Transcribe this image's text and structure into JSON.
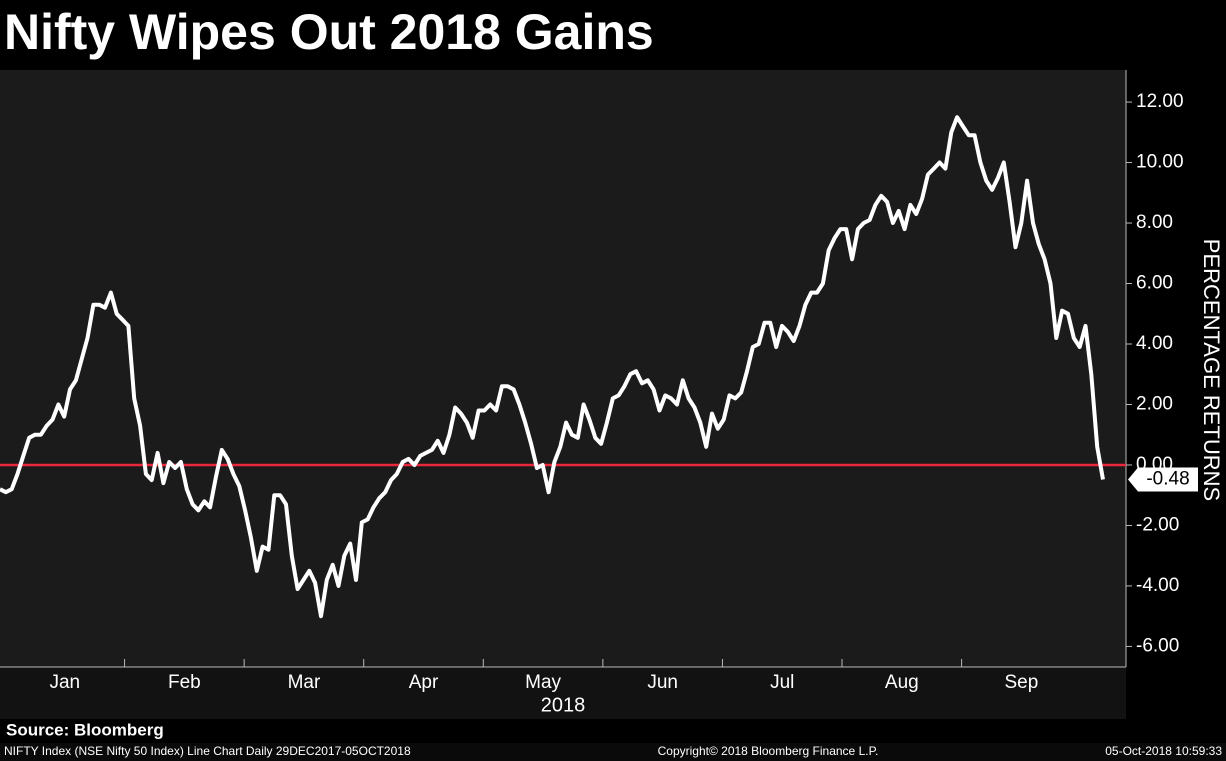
{
  "chart_data": {
    "type": "line",
    "title": "Nifty Wipes Out 2018 Gains",
    "y_label": "PERCENTAGE RETURNS",
    "x_label": "2018",
    "months": [
      "Jan",
      "Feb",
      "Mar",
      "Apr",
      "May",
      "Jun",
      "Jul",
      "Aug",
      "Sep"
    ],
    "source": "Source: Bloomberg",
    "footer_left": "NIFTY Index (NSE Nifty 50 Index) Line Chart  Daily 29DEC2017-05OCT2018",
    "footer_center": "Copyright© 2018 Bloomberg Finance L.P.",
    "footer_right": "05-Oct-2018 10:59:33",
    "ylim": [
      -6.68,
      13.06
    ],
    "yticks": [
      {
        "value": -6,
        "label": "-6.00"
      },
      {
        "value": -4,
        "label": "-4.00"
      },
      {
        "value": -2,
        "label": "-2.00"
      },
      {
        "value": 0,
        "label": "0.00"
      },
      {
        "value": 2,
        "label": "2.00"
      },
      {
        "value": 4,
        "label": "4.00"
      },
      {
        "value": 6,
        "label": "6.00"
      },
      {
        "value": 8,
        "label": "8.00"
      },
      {
        "value": 10,
        "label": "10.00"
      },
      {
        "value": 12,
        "label": "12.00"
      }
    ],
    "zero_line_color": "#e8283c",
    "series": [
      {
        "name": "NIFTY Index",
        "color": "#ffffff",
        "values": [
          -0.8,
          -0.9,
          -0.8,
          -0.3,
          0.3,
          0.9,
          1.0,
          1.0,
          1.3,
          1.5,
          2.0,
          1.6,
          2.5,
          2.8,
          3.5,
          4.2,
          5.3,
          5.3,
          5.2,
          5.7,
          5.0,
          4.8,
          4.6,
          2.2,
          1.3,
          -0.3,
          -0.5,
          0.4,
          -0.6,
          0.1,
          -0.1,
          0.1,
          -0.8,
          -1.3,
          -1.5,
          -1.2,
          -1.4,
          -0.4,
          0.5,
          0.2,
          -0.3,
          -0.7,
          -1.5,
          -2.4,
          -3.5,
          -2.7,
          -2.8,
          -1.0,
          -1.0,
          -1.3,
          -3.0,
          -4.1,
          -3.8,
          -3.5,
          -3.9,
          -5.0,
          -3.8,
          -3.3,
          -4.0,
          -3.0,
          -2.6,
          -3.8,
          -1.9,
          -1.8,
          -1.4,
          -1.1,
          -0.9,
          -0.5,
          -0.3,
          0.1,
          0.2,
          0,
          0.3,
          0.4,
          0.5,
          0.8,
          0.4,
          1.0,
          1.9,
          1.7,
          1.4,
          0.9,
          1.8,
          1.8,
          2.0,
          1.8,
          2.6,
          2.6,
          2.5,
          2.0,
          1.4,
          0.7,
          -0.1,
          0.0,
          -0.9,
          0.1,
          0.6,
          1.4,
          1.0,
          0.9,
          2.0,
          1.5,
          0.9,
          0.7,
          1.4,
          2.2,
          2.3,
          2.6,
          3.0,
          3.1,
          2.7,
          2.8,
          2.5,
          1.8,
          2.3,
          2.2,
          2.0,
          2.8,
          2.2,
          1.9,
          1.4,
          0.6,
          1.7,
          1.2,
          1.5,
          2.3,
          2.2,
          2.4,
          3.1,
          3.9,
          4.0,
          4.7,
          4.7,
          3.9,
          4.6,
          4.4,
          4.1,
          4.6,
          5.3,
          5.7,
          5.7,
          6.0,
          7.1,
          7.5,
          7.8,
          7.8,
          6.8,
          7.8,
          8.0,
          8.1,
          8.6,
          8.9,
          8.7,
          8.0,
          8.4,
          7.8,
          8.6,
          8.3,
          8.8,
          9.6,
          9.8,
          10.0,
          9.8,
          11.0,
          11.5,
          11.2,
          10.9,
          10.9,
          10.0,
          9.4,
          9.1,
          9.5,
          10.0,
          8.7,
          7.2,
          8.0,
          9.4,
          8.0,
          7.3,
          6.8,
          6.0,
          4.2,
          5.1,
          5.0,
          4.2,
          3.9,
          4.6,
          3.0,
          0.6,
          -0.48
        ]
      }
    ]
  }
}
